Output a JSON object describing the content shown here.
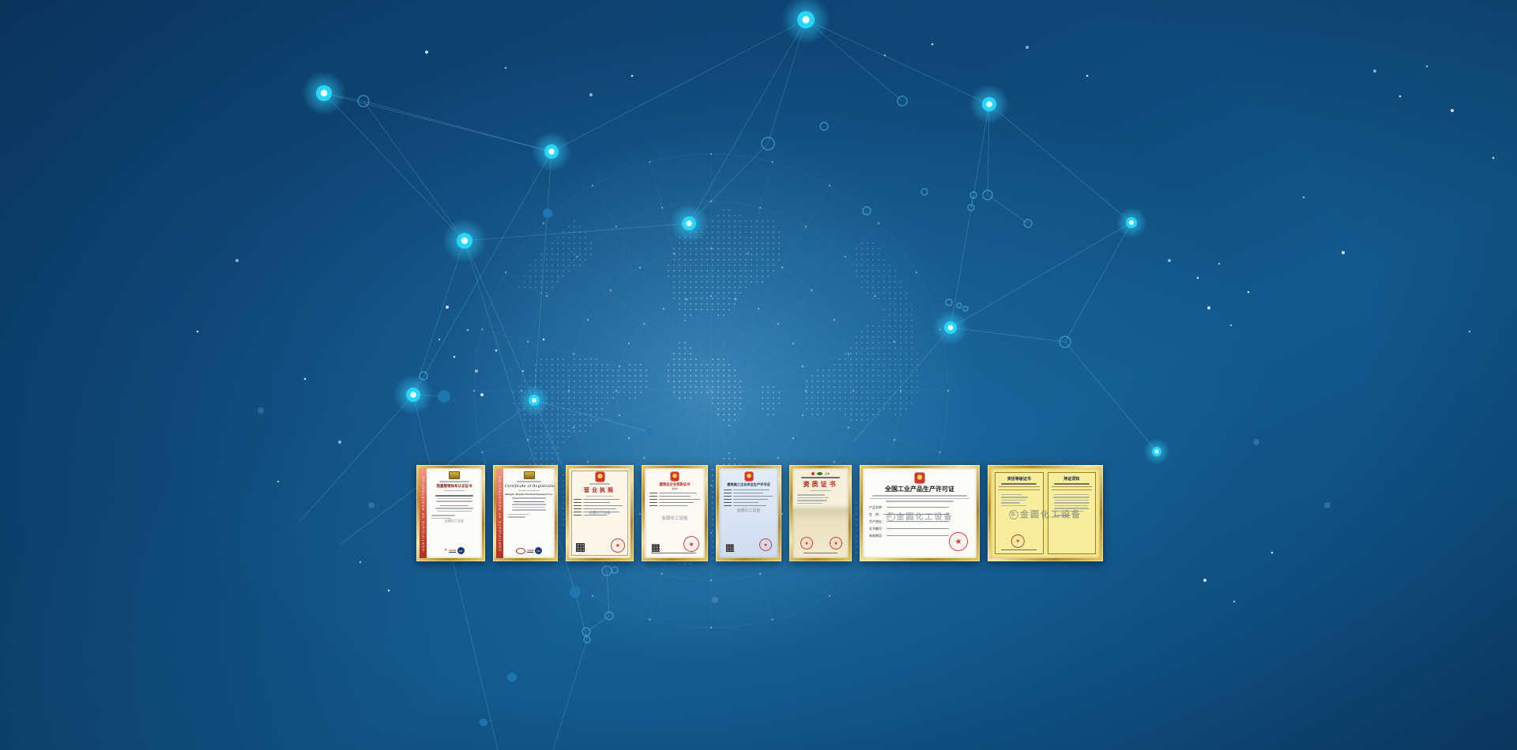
{
  "colors": {
    "background_base": "#0e4878",
    "node_glow": "#2ad0fa",
    "network_line": "#86d8f8",
    "frame_gold": "#caa033",
    "seal_red": "#c0392b"
  },
  "watermark": {
    "text": "金圆化工设备"
  },
  "certificates": [
    {
      "side_text": "CERTIFICATE OF REGISTRATION",
      "title": "质量管理体系认证证书",
      "logos": {
        "anab": "ANAB",
        "iaf": "IAF"
      }
    },
    {
      "side_text": "CERTIFICATE OF REGISTRATION",
      "title": "Certificate of Registration",
      "company": "Jiangyin Jinyuan Chemical Equipment Co.,Ltd",
      "logos": {
        "anab": "ANAB",
        "iaf": "IAF"
      }
    },
    {
      "title": "营业执照"
    },
    {
      "title": "建筑业企业资质证书",
      "subtitle": "（副本）"
    },
    {
      "title": "建筑施工企业安全生产许可证"
    },
    {
      "title": "资质证书",
      "edition": "正本"
    },
    {
      "title": "全国工业产品生产许可证",
      "fields": [
        "产品名称：",
        "住　所：",
        "生产地址：",
        "证书编号：",
        "有效期至："
      ]
    },
    {
      "left_title": "资信等级证书",
      "right_title": "持证须知"
    }
  ]
}
